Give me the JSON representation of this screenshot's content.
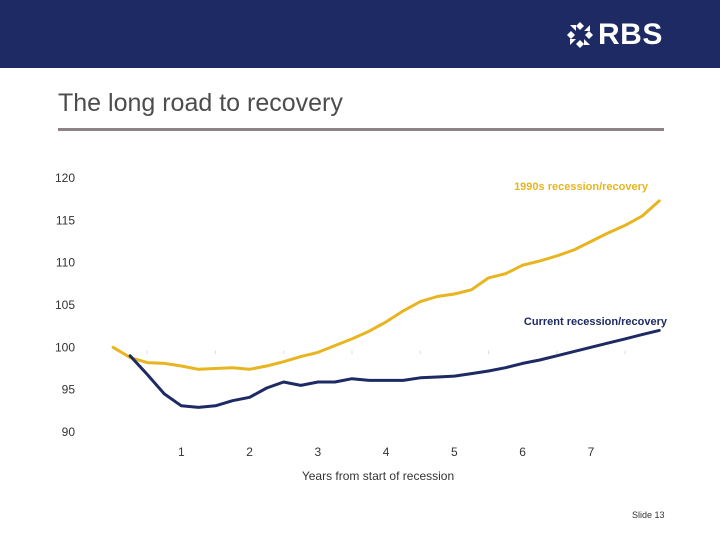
{
  "brand": {
    "name": "RBS",
    "logo_icon": "daisy-wheel-icon",
    "bar_color": "#1d2a63"
  },
  "slide": {
    "title": "The long road to recovery",
    "number_label": "Slide 13"
  },
  "chart_data": {
    "type": "line",
    "title": "",
    "xlabel": "Years from start of recession",
    "ylabel": "",
    "xlim": [
      -0.25,
      8.1
    ],
    "ylim": [
      90,
      120
    ],
    "x_ticks": [
      1,
      2,
      3,
      4,
      5,
      6,
      7
    ],
    "y_ticks": [
      90,
      95,
      100,
      105,
      110,
      115,
      120
    ],
    "grid": false,
    "series": [
      {
        "name": "1990s recession/recovery",
        "color": "#e8b520",
        "points": [
          [
            0,
            100
          ],
          [
            0.25,
            98.8
          ],
          [
            0.5,
            98.2
          ],
          [
            0.75,
            98.1
          ],
          [
            1,
            97.8
          ],
          [
            1.25,
            97.4
          ],
          [
            1.5,
            97.5
          ],
          [
            1.75,
            97.6
          ],
          [
            2,
            97.4
          ],
          [
            2.25,
            97.8
          ],
          [
            2.5,
            98.3
          ],
          [
            2.75,
            98.9
          ],
          [
            3,
            99.4
          ],
          [
            3.25,
            100.2
          ],
          [
            3.5,
            101.0
          ],
          [
            3.75,
            101.9
          ],
          [
            4,
            103.0
          ],
          [
            4.25,
            104.3
          ],
          [
            4.5,
            105.4
          ],
          [
            4.75,
            106.0
          ],
          [
            5,
            106.3
          ],
          [
            5.25,
            106.8
          ],
          [
            5.5,
            108.2
          ],
          [
            5.75,
            108.7
          ],
          [
            6,
            109.7
          ],
          [
            6.25,
            110.2
          ],
          [
            6.5,
            110.8
          ],
          [
            6.75,
            111.5
          ],
          [
            7,
            112.5
          ],
          [
            7.25,
            113.5
          ],
          [
            7.5,
            114.4
          ],
          [
            7.75,
            115.5
          ],
          [
            8,
            117.3
          ]
        ]
      },
      {
        "name": "Current recession/recovery",
        "color": "#1d2a63",
        "points": [
          [
            0.25,
            99.0
          ],
          [
            0.5,
            96.8
          ],
          [
            0.75,
            94.5
          ],
          [
            1,
            93.1
          ],
          [
            1.25,
            92.9
          ],
          [
            1.5,
            93.1
          ],
          [
            1.75,
            93.7
          ],
          [
            2,
            94.1
          ],
          [
            2.25,
            95.2
          ],
          [
            2.5,
            95.9
          ],
          [
            2.75,
            95.5
          ],
          [
            3,
            95.9
          ],
          [
            3.25,
            95.9
          ],
          [
            3.5,
            96.3
          ],
          [
            3.75,
            96.1
          ],
          [
            4,
            96.1
          ],
          [
            4.25,
            96.1
          ],
          [
            4.5,
            96.4
          ],
          [
            4.75,
            96.5
          ],
          [
            5,
            96.6
          ],
          [
            5.25,
            96.9
          ],
          [
            5.5,
            97.2
          ],
          [
            5.75,
            97.6
          ],
          [
            6,
            98.1
          ],
          [
            6.25,
            98.5
          ],
          [
            6.5,
            99.0
          ],
          [
            6.75,
            99.5
          ],
          [
            7,
            100.0
          ],
          [
            7.25,
            100.5
          ],
          [
            7.5,
            101.0
          ],
          [
            7.75,
            101.5
          ],
          [
            8,
            102.0
          ]
        ]
      }
    ]
  }
}
